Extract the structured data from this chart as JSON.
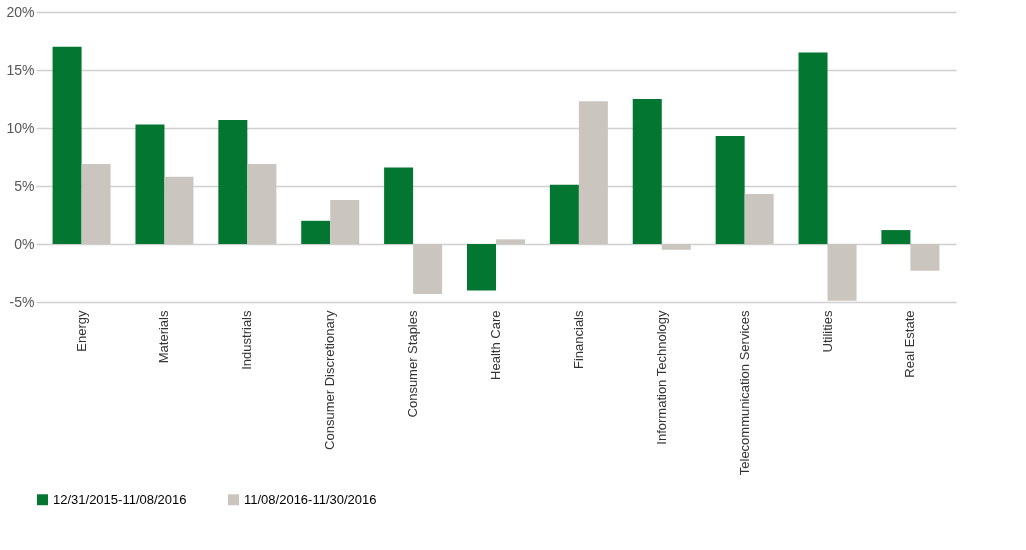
{
  "chart_data": {
    "type": "bar",
    "categories": [
      "Energy",
      "Materials",
      "Industrials",
      "Consumer Discretionary",
      "Consumer Staples",
      "Health Care",
      "Financials",
      "Information Technology",
      "Telecommunication Services",
      "Utilities",
      "Real Estate"
    ],
    "series": [
      {
        "name": "12/31/2015-11/08/2016",
        "color": "#037632",
        "values": [
          17.0,
          10.3,
          10.7,
          2.0,
          6.6,
          -4.0,
          5.1,
          12.5,
          9.3,
          16.5,
          1.2
        ]
      },
      {
        "name": "11/08/2016-11/30/2016",
        "color": "#cbc5bf",
        "values": [
          6.9,
          5.8,
          6.9,
          3.8,
          -4.3,
          0.4,
          12.3,
          -0.5,
          4.3,
          -4.9,
          -2.3
        ]
      }
    ],
    "ylim": [
      -5,
      20
    ],
    "yticks": [
      {
        "value": -5,
        "label": "-5%"
      },
      {
        "value": 0,
        "label": "0%"
      },
      {
        "value": 5,
        "label": "5%"
      },
      {
        "value": 10,
        "label": "10%"
      },
      {
        "value": 15,
        "label": "15%"
      },
      {
        "value": 20,
        "label": "20%"
      }
    ],
    "grid": "y",
    "legend": "bottom"
  }
}
